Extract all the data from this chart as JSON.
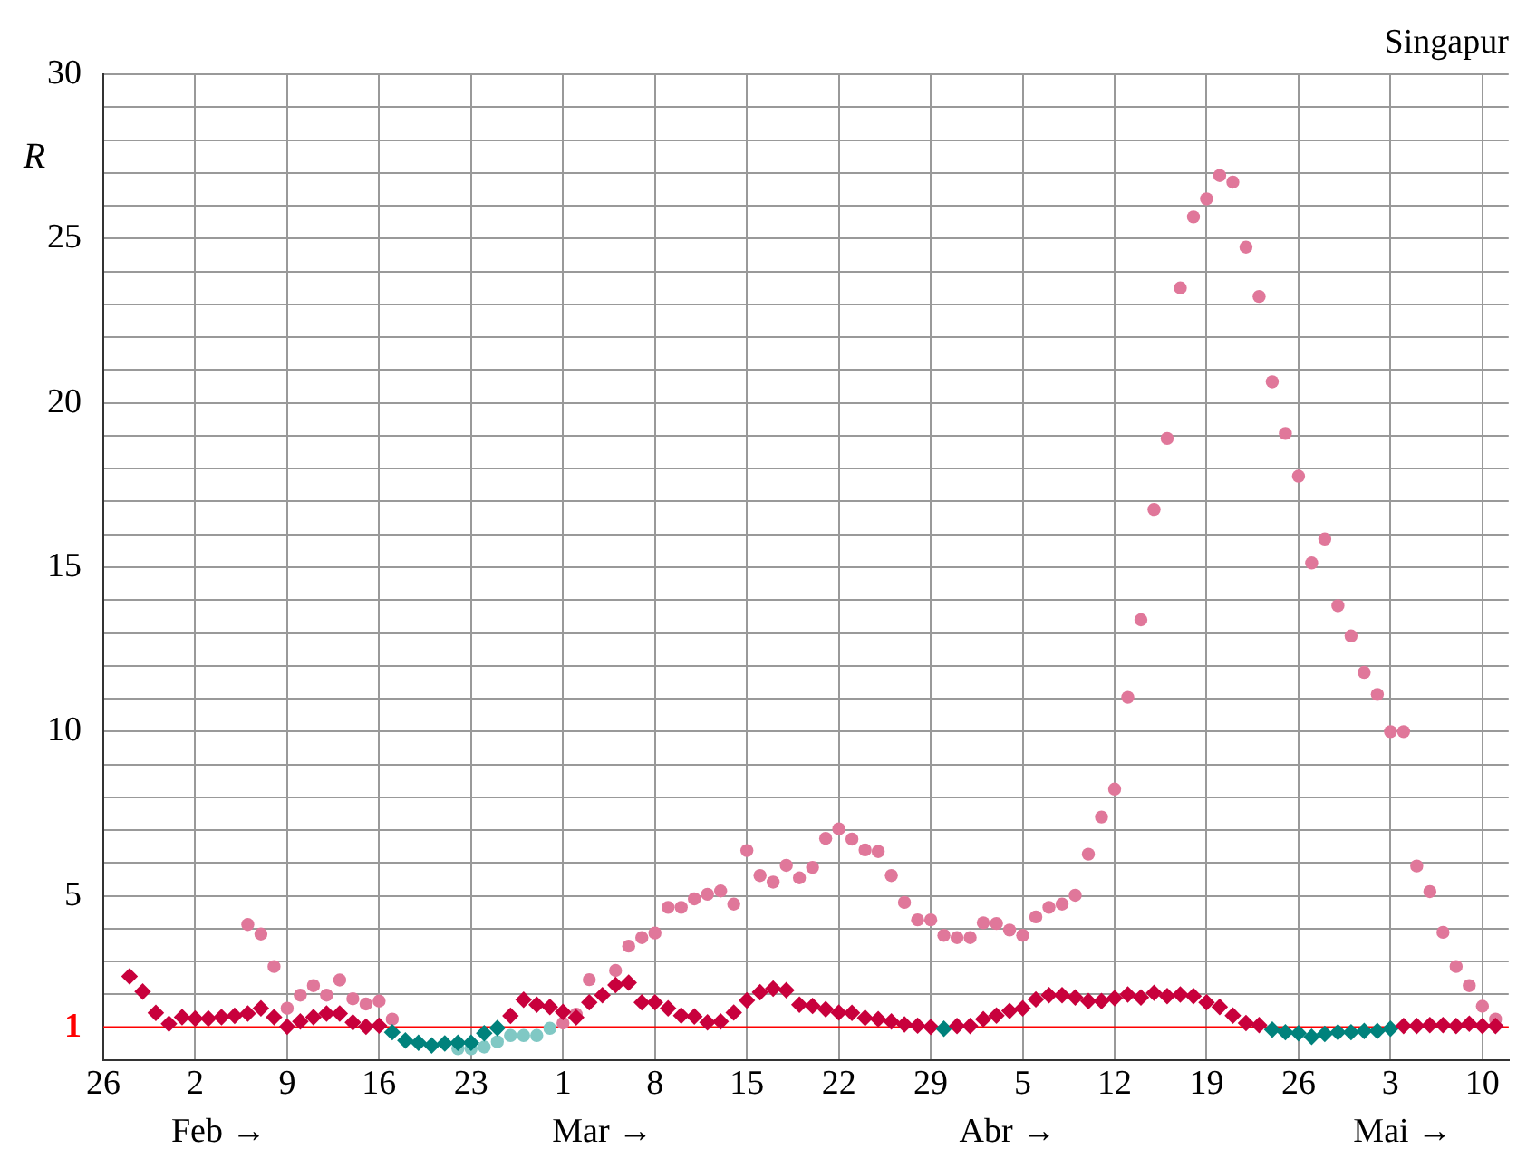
{
  "chart_data": {
    "type": "scatter",
    "title": "Singapur",
    "ylabel": "R",
    "x": [
      "--01-28",
      "--01-29",
      "--01-30",
      "--01-31",
      "--02-01",
      "--02-02",
      "--02-03",
      "--02-04",
      "--02-05",
      "--02-06",
      "--02-07",
      "--02-08",
      "--02-09",
      "--02-10",
      "--02-11",
      "--02-12",
      "--02-13",
      "--02-14",
      "--02-15",
      "--02-16",
      "--02-17",
      "--02-18",
      "--02-19",
      "--02-20",
      "--02-21",
      "--02-22",
      "--02-23",
      "--02-24",
      "--02-25",
      "--02-26",
      "--02-27",
      "--02-28",
      "--02-29",
      "--03-01",
      "--03-02",
      "--03-03",
      "--03-04",
      "--03-05",
      "--03-06",
      "--03-07",
      "--03-08",
      "--03-09",
      "--03-10",
      "--03-11",
      "--03-12",
      "--03-13",
      "--03-14",
      "--03-15",
      "--03-16",
      "--03-17",
      "--03-18",
      "--03-19",
      "--03-20",
      "--03-21",
      "--03-22",
      "--03-23",
      "--03-24",
      "--03-25",
      "--03-26",
      "--03-27",
      "--03-28",
      "--03-29",
      "--03-30",
      "--03-31",
      "--04-01",
      "--04-02",
      "--04-03",
      "--04-04",
      "--04-05",
      "--04-06",
      "--04-07",
      "--04-08",
      "--04-09",
      "--04-10",
      "--04-11",
      "--04-12",
      "--04-13",
      "--04-14",
      "--04-15",
      "--04-16",
      "--04-17",
      "--04-18",
      "--04-19",
      "--04-20",
      "--04-21",
      "--04-22",
      "--04-23",
      "--04-24",
      "--04-25",
      "--04-26",
      "--04-27",
      "--04-28",
      "--04-29",
      "--04-30",
      "--05-01",
      "--05-02",
      "--05-03",
      "--05-04",
      "--05-05",
      "--05-06",
      "--05-07",
      "--05-08",
      "--05-09",
      "--05-10",
      "--05-11"
    ],
    "series": [
      {
        "marker": "diamond",
        "values": [
          2.55,
          2.09,
          1.44,
          1.11,
          1.31,
          1.27,
          1.27,
          1.31,
          1.35,
          1.42,
          1.58,
          1.31,
          1.02,
          1.18,
          1.31,
          1.42,
          1.42,
          1.15,
          1.02,
          1.05,
          0.85,
          0.6,
          0.53,
          0.45,
          0.51,
          0.53,
          0.53,
          0.82,
          0.98,
          1.35,
          1.84,
          1.69,
          1.62,
          1.47,
          1.3,
          1.76,
          1.98,
          2.29,
          2.36,
          1.76,
          1.76,
          1.58,
          1.36,
          1.33,
          1.15,
          1.18,
          1.45,
          1.82,
          2.07,
          2.18,
          2.13,
          1.69,
          1.65,
          1.55,
          1.45,
          1.44,
          1.29,
          1.25,
          1.18,
          1.09,
          1.05,
          1.01,
          0.96,
          1.04,
          1.04,
          1.25,
          1.36,
          1.5,
          1.58,
          1.85,
          1.98,
          1.98,
          1.91,
          1.8,
          1.8,
          1.89,
          2.0,
          1.91,
          2.05,
          1.95,
          2.0,
          1.95,
          1.76,
          1.62,
          1.36,
          1.13,
          1.07,
          0.93,
          0.85,
          0.82,
          0.71,
          0.8,
          0.85,
          0.85,
          0.89,
          0.89,
          0.96,
          1.04,
          1.04,
          1.07,
          1.07,
          1.04,
          1.11,
          1.04,
          1.04
        ],
        "colors": [
          "#c8003c",
          "#c8003c",
          "#c8003c",
          "#c8003c",
          "#c8003c",
          "#c8003c",
          "#c8003c",
          "#c8003c",
          "#c8003c",
          "#c8003c",
          "#c8003c",
          "#c8003c",
          "#c8003c",
          "#c8003c",
          "#c8003c",
          "#c8003c",
          "#c8003c",
          "#c8003c",
          "#c8003c",
          "#c8003c",
          "#00827c",
          "#00827c",
          "#00827c",
          "#00827c",
          "#00827c",
          "#00827c",
          "#00827c",
          "#00827c",
          "#00827c",
          "#c8003c",
          "#c8003c",
          "#c8003c",
          "#c8003c",
          "#c8003c",
          "#c8003c",
          "#c8003c",
          "#c8003c",
          "#c8003c",
          "#c8003c",
          "#c8003c",
          "#c8003c",
          "#c8003c",
          "#c8003c",
          "#c8003c",
          "#c8003c",
          "#c8003c",
          "#c8003c",
          "#c8003c",
          "#c8003c",
          "#c8003c",
          "#c8003c",
          "#c8003c",
          "#c8003c",
          "#c8003c",
          "#c8003c",
          "#c8003c",
          "#c8003c",
          "#c8003c",
          "#c8003c",
          "#c8003c",
          "#c8003c",
          "#c8003c",
          "#00827c",
          "#c8003c",
          "#c8003c",
          "#c8003c",
          "#c8003c",
          "#c8003c",
          "#c8003c",
          "#c8003c",
          "#c8003c",
          "#c8003c",
          "#c8003c",
          "#c8003c",
          "#c8003c",
          "#c8003c",
          "#c8003c",
          "#c8003c",
          "#c8003c",
          "#c8003c",
          "#c8003c",
          "#c8003c",
          "#c8003c",
          "#c8003c",
          "#c8003c",
          "#c8003c",
          "#c8003c",
          "#00827c",
          "#00827c",
          "#00827c",
          "#00827c",
          "#00827c",
          "#00827c",
          "#00827c",
          "#00827c",
          "#00827c",
          "#00827c",
          "#c8003c",
          "#c8003c",
          "#c8003c",
          "#c8003c",
          "#c8003c",
          "#c8003c",
          "#c8003c",
          "#c8003c"
        ]
      },
      {
        "marker": "circle",
        "values": [
          null,
          null,
          null,
          null,
          null,
          null,
          null,
          null,
          null,
          4.13,
          3.84,
          2.85,
          1.58,
          1.98,
          2.27,
          1.98,
          2.44,
          1.87,
          1.71,
          1.8,
          1.25,
          null,
          null,
          null,
          null,
          0.35,
          0.35,
          0.4,
          0.56,
          0.75,
          0.75,
          0.75,
          0.97,
          1.13,
          1.4,
          2.45,
          null,
          2.73,
          3.47,
          3.73,
          3.87,
          4.65,
          4.65,
          4.91,
          5.05,
          5.15,
          4.75,
          6.38,
          5.62,
          5.42,
          5.93,
          5.55,
          5.87,
          6.75,
          7.04,
          6.73,
          6.4,
          6.35,
          5.62,
          4.8,
          4.27,
          4.27,
          3.8,
          3.73,
          3.73,
          4.18,
          4.16,
          3.96,
          3.8,
          4.36,
          4.65,
          4.75,
          5.02,
          6.27,
          7.4,
          8.25,
          11.04,
          13.4,
          16.76,
          18.92,
          23.5,
          25.66,
          26.21,
          26.92,
          26.72,
          24.74,
          23.24,
          20.64,
          19.07,
          17.77,
          15.13,
          15.86,
          13.83,
          12.91,
          11.8,
          11.13,
          10.0,
          10.0,
          5.91,
          5.13,
          3.89,
          2.85,
          2.27,
          1.64,
          1.25
        ],
        "colors": [
          "#e0779a",
          "#e0779a",
          "#e0779a",
          "#e0779a",
          "#e0779a",
          "#e0779a",
          "#e0779a",
          "#e0779a",
          "#e0779a",
          "#e0779a",
          "#e0779a",
          "#e0779a",
          "#e0779a",
          "#e0779a",
          "#e0779a",
          "#e0779a",
          "#e0779a",
          "#e0779a",
          "#e0779a",
          "#e0779a",
          "#e0779a",
          "#80c8c4",
          "#80c8c4",
          "#80c8c4",
          "#80c8c4",
          "#80c8c4",
          "#80c8c4",
          "#80c8c4",
          "#80c8c4",
          "#80c8c4",
          "#80c8c4",
          "#80c8c4",
          "#80c8c4",
          "#e0779a",
          "#e0779a",
          "#e0779a",
          "#e0779a",
          "#e0779a",
          "#e0779a",
          "#e0779a",
          "#e0779a",
          "#e0779a",
          "#e0779a",
          "#e0779a",
          "#e0779a",
          "#e0779a",
          "#e0779a",
          "#e0779a",
          "#e0779a",
          "#e0779a",
          "#e0779a",
          "#e0779a",
          "#e0779a",
          "#e0779a",
          "#e0779a",
          "#e0779a",
          "#e0779a",
          "#e0779a",
          "#e0779a",
          "#e0779a",
          "#e0779a",
          "#e0779a",
          "#e0779a",
          "#e0779a",
          "#e0779a",
          "#e0779a",
          "#e0779a",
          "#e0779a",
          "#e0779a",
          "#e0779a",
          "#e0779a",
          "#e0779a",
          "#e0779a",
          "#e0779a",
          "#e0779a",
          "#e0779a",
          "#e0779a",
          "#e0779a",
          "#e0779a",
          "#e0779a",
          "#e0779a",
          "#e0779a",
          "#e0779a",
          "#e0779a",
          "#e0779a",
          "#e0779a",
          "#e0779a",
          "#e0779a",
          "#e0779a",
          "#e0779a",
          "#e0779a",
          "#e0779a",
          "#e0779a",
          "#e0779a",
          "#e0779a",
          "#e0779a",
          "#e0779a",
          "#e0779a",
          "#e0779a",
          "#e0779a",
          "#e0779a",
          "#e0779a",
          "#e0779a",
          "#e0779a",
          "#e0779a"
        ]
      }
    ],
    "xlim": [
      "--01-26",
      "--05-12"
    ],
    "xticks": [
      {
        "value": "--01-26",
        "label": "26"
      },
      {
        "value": "--02-02",
        "label": "2"
      },
      {
        "value": "--02-09",
        "label": "9"
      },
      {
        "value": "--02-16",
        "label": "16"
      },
      {
        "value": "--02-23",
        "label": "23"
      },
      {
        "value": "--03-01",
        "label": "1"
      },
      {
        "value": "--03-08",
        "label": "8"
      },
      {
        "value": "--03-15",
        "label": "15"
      },
      {
        "value": "--03-22",
        "label": "22"
      },
      {
        "value": "--03-29",
        "label": "29"
      },
      {
        "value": "--04-05",
        "label": "5"
      },
      {
        "value": "--04-12",
        "label": "12"
      },
      {
        "value": "--04-19",
        "label": "19"
      },
      {
        "value": "--04-26",
        "label": "26"
      },
      {
        "value": "--05-03",
        "label": "3"
      },
      {
        "value": "--05-10",
        "label": "10"
      }
    ],
    "ylim": [
      0,
      30
    ],
    "yticks": [
      {
        "value": 0,
        "label": null
      },
      1,
      {
        "value": 2,
        "label": null
      },
      {
        "value": 3,
        "label": null
      },
      {
        "value": 4,
        "label": null
      },
      5,
      {
        "value": 6,
        "label": null
      },
      {
        "value": 7,
        "label": null
      },
      {
        "value": 8,
        "label": null
      },
      {
        "value": 9,
        "label": null
      },
      10,
      {
        "value": 11,
        "label": null
      },
      {
        "value": 12,
        "label": null
      },
      {
        "value": 13,
        "label": null
      },
      {
        "value": 14,
        "label": null
      },
      15,
      {
        "value": 16,
        "label": null
      },
      {
        "value": 17,
        "label": null
      },
      {
        "value": 18,
        "label": null
      },
      {
        "value": 19,
        "label": null
      },
      20,
      {
        "value": 21,
        "label": null
      },
      {
        "value": 22,
        "label": null
      },
      {
        "value": 23,
        "label": null
      },
      {
        "value": 24,
        "label": null
      },
      25,
      {
        "value": 26,
        "label": null
      },
      {
        "value": 27,
        "label": null
      },
      {
        "value": 28,
        "label": null
      },
      {
        "value": 29,
        "label": null
      },
      30
    ],
    "grid": true,
    "ref_lines": [
      {
        "axis": "y",
        "value": 1,
        "color": "#ff0000"
      }
    ],
    "annotations": [
      "Feb →",
      "Mar →",
      "Abr →",
      "Mai →"
    ]
  }
}
